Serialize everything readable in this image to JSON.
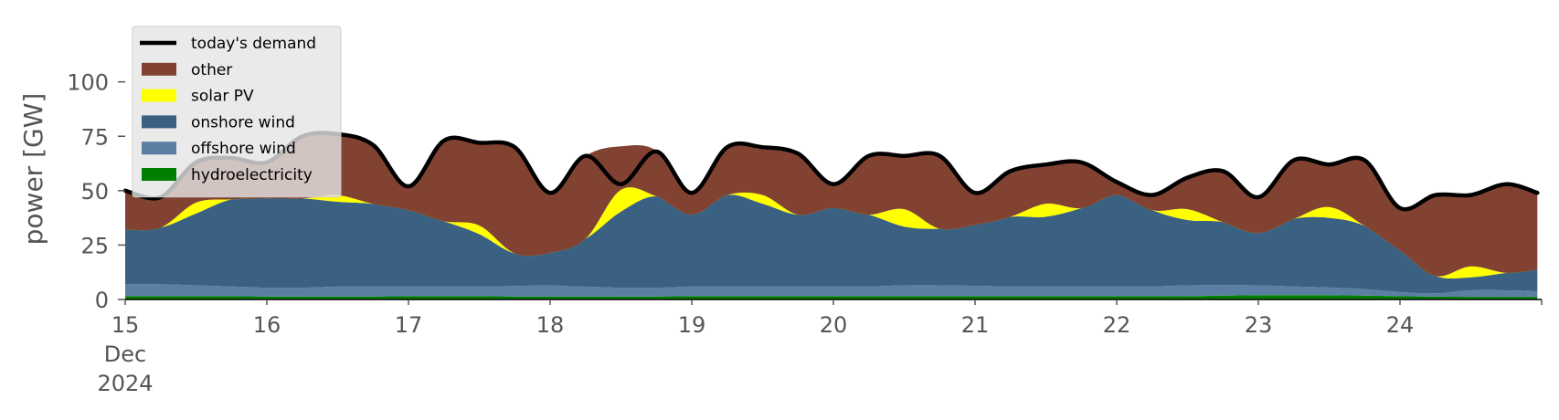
{
  "chart_data": {
    "type": "area",
    "ylabel": "power [GW]",
    "ylim": [
      0,
      120
    ],
    "yticks": [
      0,
      25,
      50,
      75,
      100
    ],
    "xlim": [
      15,
      25
    ],
    "xticks": [
      {
        "x": 15,
        "lines": [
          "15",
          "Dec",
          "2024"
        ]
      },
      {
        "x": 16,
        "lines": [
          "16"
        ]
      },
      {
        "x": 17,
        "lines": [
          "17"
        ]
      },
      {
        "x": 18,
        "lines": [
          "18"
        ]
      },
      {
        "x": 19,
        "lines": [
          "19"
        ]
      },
      {
        "x": 20,
        "lines": [
          "20"
        ]
      },
      {
        "x": 21,
        "lines": [
          "21"
        ]
      },
      {
        "x": 22,
        "lines": [
          "22"
        ]
      },
      {
        "x": 23,
        "lines": [
          "23"
        ]
      },
      {
        "x": 24,
        "lines": [
          "24"
        ]
      }
    ],
    "x": [
      15.0,
      15.25,
      15.5,
      15.75,
      16.0,
      16.25,
      16.5,
      16.75,
      17.0,
      17.25,
      17.5,
      17.75,
      18.0,
      18.25,
      18.5,
      18.75,
      19.0,
      19.25,
      19.5,
      19.75,
      20.0,
      20.25,
      20.5,
      20.75,
      21.0,
      21.25,
      21.5,
      21.75,
      22.0,
      22.25,
      22.5,
      22.75,
      23.0,
      23.25,
      23.5,
      23.75,
      24.0,
      24.25,
      24.5,
      24.75,
      24.97
    ],
    "series": [
      {
        "name": "hydroelectricity",
        "color": "#008000",
        "values": [
          1.5,
          1.5,
          1.5,
          1.5,
          1.4,
          1.4,
          1.4,
          1.4,
          1.5,
          1.5,
          1.5,
          1.4,
          1.4,
          1.4,
          1.4,
          1.4,
          1.5,
          1.5,
          1.5,
          1.5,
          1.5,
          1.5,
          1.5,
          1.5,
          1.5,
          1.5,
          1.5,
          1.5,
          1.5,
          1.5,
          1.5,
          1.8,
          2.0,
          2.0,
          2.0,
          1.8,
          1.5,
          1.3,
          1.2,
          1.2,
          1.2
        ]
      },
      {
        "name": "offshore wind",
        "color": "#5b7fa3",
        "values": [
          5.5,
          5.5,
          5.0,
          4.5,
          4.0,
          4.0,
          4.5,
          4.5,
          4.5,
          4.5,
          4.5,
          4.8,
          5.0,
          4.5,
          4.0,
          4.0,
          4.5,
          4.5,
          4.5,
          4.5,
          4.5,
          4.5,
          5.0,
          5.0,
          4.8,
          4.5,
          4.5,
          4.5,
          4.5,
          4.5,
          5.0,
          4.8,
          4.5,
          4.0,
          3.5,
          3.0,
          2.0,
          1.5,
          3.0,
          3.0,
          2.5
        ]
      },
      {
        "name": "onshore wind",
        "color": "#3a6082",
        "values": [
          25,
          26,
          33,
          40,
          41,
          41,
          39,
          38,
          35,
          30,
          24,
          15,
          15,
          22,
          35,
          42,
          33,
          42,
          38,
          33,
          36,
          33,
          27,
          26,
          28,
          32,
          32,
          36,
          42,
          35,
          30,
          29,
          24,
          31,
          32,
          29,
          19,
          8,
          6,
          8,
          10
        ]
      },
      {
        "name": "solar PV",
        "color": "#ffff00",
        "values": [
          0,
          0,
          5,
          0,
          0,
          0,
          3,
          0,
          0,
          0,
          4,
          0,
          0,
          0,
          10,
          0,
          0,
          0,
          4,
          0,
          0,
          0,
          8,
          0,
          0,
          0,
          6,
          0,
          0,
          0,
          5,
          0,
          0,
          0,
          5,
          0,
          0,
          0,
          5,
          0,
          0
        ]
      },
      {
        "name": "other",
        "color": "#824232",
        "values": [
          18,
          14,
          19,
          19,
          17,
          29,
          28,
          27,
          11,
          37,
          38,
          49,
          27,
          38,
          20,
          21,
          10,
          22,
          21,
          29,
          11,
          27,
          24,
          33,
          14,
          21,
          18,
          21,
          6,
          7,
          14,
          23,
          16,
          28,
          19,
          30,
          19,
          37,
          33,
          41,
          35
        ]
      },
      {
        "name": "today's demand",
        "color": "#000000",
        "type": "line",
        "values": [
          50,
          47,
          63,
          65,
          63,
          75,
          76,
          71,
          52,
          73,
          72,
          70,
          49,
          66,
          53,
          68,
          49,
          70,
          70,
          67,
          53,
          66,
          66,
          66,
          49,
          59,
          62,
          63,
          54,
          48,
          56,
          59,
          47,
          64,
          62,
          64,
          42,
          48,
          48,
          53,
          49
        ]
      }
    ],
    "grid": false,
    "legend": "top-left"
  }
}
